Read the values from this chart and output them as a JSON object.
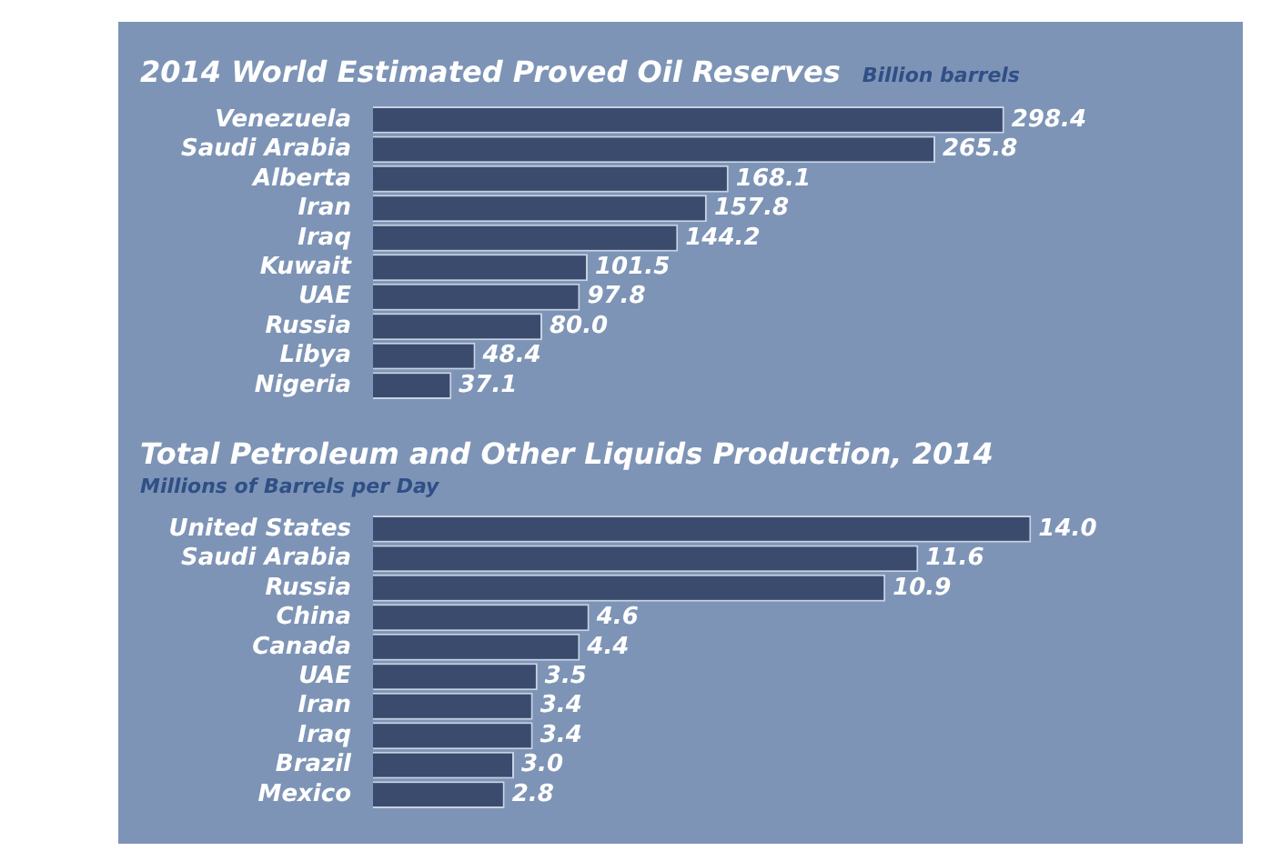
{
  "chart_data": [
    {
      "type": "bar",
      "orientation": "horizontal",
      "title": "2014 World Estimated Proved Oil Reserves",
      "subtitle": "Billion barrels",
      "categories": [
        "Venezuela",
        "Saudi Arabia",
        "Alberta",
        "Iran",
        "Iraq",
        "Kuwait",
        "UAE",
        "Russia",
        "Libya",
        "Nigeria"
      ],
      "values": [
        298.4,
        265.8,
        168.1,
        157.8,
        144.2,
        101.5,
        97.8,
        80.0,
        48.4,
        37.1
      ],
      "value_labels": [
        "298.4",
        "265.8",
        "168.1",
        "157.8",
        "144.2",
        "101.5",
        "97.8",
        "80.0",
        "48.4",
        "37.1"
      ],
      "color": "#3b4b6e",
      "tick_labels": "y",
      "grid": false,
      "legend": false
    },
    {
      "type": "bar",
      "orientation": "horizontal",
      "title": "Total Petroleum and Other Liquids Production, 2014",
      "subtitle": "Millions of Barrels per Day",
      "categories": [
        "United States",
        "Saudi Arabia",
        "Russia",
        "China",
        "Canada",
        "UAE",
        "Iran",
        "Iraq",
        "Brazil",
        "Mexico"
      ],
      "values": [
        14.0,
        11.6,
        10.9,
        4.6,
        4.4,
        3.5,
        3.4,
        3.4,
        3.0,
        2.8
      ],
      "value_labels": [
        "14.0",
        "11.6",
        "10.9",
        "4.6",
        "4.4",
        "3.5",
        "3.4",
        "3.4",
        "3.0",
        "2.8"
      ],
      "color": "#3b4b6e",
      "tick_labels": "y",
      "grid": false,
      "legend": false
    }
  ]
}
